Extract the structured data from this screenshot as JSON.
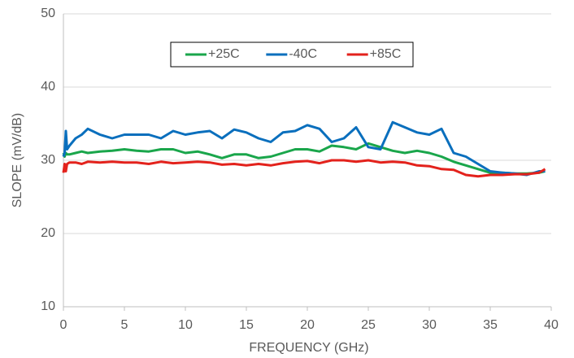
{
  "chart_data": {
    "type": "line",
    "x_label": "FREQUENCY (GHz)",
    "y_label": "SLOPE (mV/dB)",
    "x": [
      0,
      0.1,
      0.2,
      0.3,
      0.5,
      1,
      1.5,
      2,
      3,
      4,
      5,
      6,
      7,
      8,
      9,
      10,
      11,
      12,
      13,
      14,
      15,
      16,
      17,
      18,
      19,
      20,
      21,
      22,
      23,
      24,
      25,
      26,
      27,
      28,
      29,
      30,
      31,
      32,
      33,
      34,
      35,
      36,
      37,
      38,
      39,
      39.5
    ],
    "series": [
      {
        "name": "+25C",
        "color": "#1aa64b",
        "values": [
          31,
          30.5,
          31,
          30.8,
          30.8,
          31,
          31.2,
          31,
          31.2,
          31.3,
          31.5,
          31.3,
          31.2,
          31.5,
          31.5,
          31,
          31.2,
          30.8,
          30.3,
          30.8,
          30.8,
          30.3,
          30.5,
          31,
          31.5,
          31.5,
          31.2,
          32,
          31.8,
          31.5,
          32.3,
          31.8,
          31.3,
          31,
          31.3,
          31,
          30.5,
          29.8,
          29.3,
          28.8,
          28.3,
          28.3,
          28.2,
          28.2,
          28.3,
          28.5
        ]
      },
      {
        "name": "-40C",
        "color": "#0a6fbd",
        "values": [
          30.5,
          31,
          34,
          31.5,
          32,
          33,
          33.5,
          34.3,
          33.5,
          33,
          33.5,
          33.5,
          33.5,
          33,
          34,
          33.5,
          33.8,
          34,
          33,
          34.2,
          33.8,
          33,
          32.5,
          33.8,
          34,
          34.8,
          34.3,
          32.5,
          33,
          34.5,
          31.8,
          31.5,
          35.2,
          34.5,
          33.8,
          33.5,
          34.3,
          31,
          30.5,
          29.5,
          28.5,
          28.3,
          28.2,
          28,
          28.5,
          28.5
        ]
      },
      {
        "name": "+85C",
        "color": "#e3221c",
        "values": [
          28.3,
          29.5,
          28.5,
          29.5,
          29.7,
          29.7,
          29.5,
          29.8,
          29.7,
          29.8,
          29.7,
          29.7,
          29.5,
          29.8,
          29.6,
          29.7,
          29.8,
          29.7,
          29.4,
          29.5,
          29.3,
          29.5,
          29.3,
          29.6,
          29.8,
          29.9,
          29.6,
          30,
          30,
          29.8,
          30,
          29.7,
          29.8,
          29.7,
          29.3,
          29.2,
          28.8,
          28.7,
          28,
          27.8,
          28,
          28,
          28.1,
          28.1,
          28.3,
          28.8
        ]
      }
    ],
    "xlim": [
      0,
      40
    ],
    "xticks": [
      0,
      5,
      10,
      15,
      20,
      25,
      30,
      35,
      40
    ],
    "ylim": [
      10,
      50
    ],
    "yticks": [
      10,
      20,
      30,
      40,
      50
    ],
    "grid": true,
    "legend": "top"
  }
}
